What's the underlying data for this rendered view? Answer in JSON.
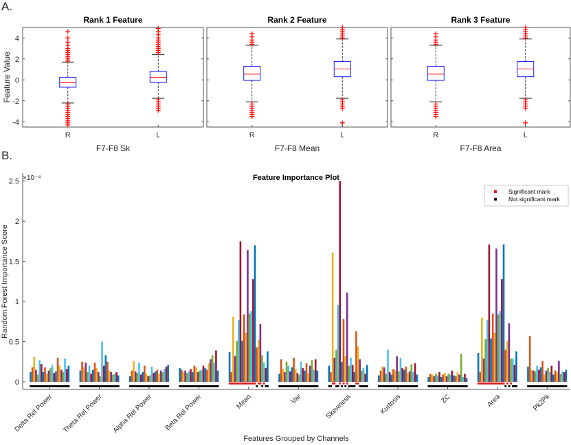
{
  "panel_labels": {
    "a": "A.",
    "b": "B."
  },
  "chart_data": [
    {
      "type": "box",
      "title": "Rank 1 Feature",
      "xlabel": "F7-F8 Sk",
      "ylabel": "Feature Value",
      "categories": [
        "R",
        "L"
      ],
      "ylim": [
        -4.5,
        5
      ],
      "yticks": [
        -4,
        -2,
        0,
        2,
        4
      ],
      "boxes": [
        {
          "category": "R",
          "q1": -0.7,
          "median": -0.25,
          "q3": 0.25,
          "whisker_low": -2.2,
          "whisker_high": 1.7,
          "outliers_low": [
            -2.3,
            -2.5,
            -2.7,
            -2.9,
            -3.1,
            -3.3,
            -3.5,
            -3.7,
            -3.9,
            -4.1,
            -4.3
          ],
          "outliers_high": [
            1.8,
            2.0,
            2.2,
            2.4,
            2.6,
            2.8,
            3.0,
            3.3,
            3.6,
            4.0,
            4.6
          ]
        },
        {
          "category": "L",
          "q1": -0.25,
          "median": 0.25,
          "q3": 0.8,
          "whisker_low": -1.75,
          "whisker_high": 2.4,
          "outliers_low": [
            -1.9,
            -2.1,
            -2.3,
            -2.5,
            -2.7,
            -2.9
          ],
          "outliers_high": [
            2.6,
            2.8,
            3.0,
            3.2,
            3.4,
            3.6,
            3.8,
            4.0,
            4.3,
            4.6,
            4.9
          ]
        }
      ]
    },
    {
      "type": "box",
      "title": "Rank 2 Feature",
      "xlabel": "F7-F8 Mean",
      "categories": [
        "R",
        "L"
      ],
      "ylim": [
        -4.5,
        5
      ],
      "boxes": [
        {
          "category": "R",
          "q1": -0.05,
          "median": 0.55,
          "q3": 1.3,
          "whisker_low": -2.1,
          "whisker_high": 3.3,
          "outliers_low": [
            -2.3,
            -2.5,
            -2.7,
            -2.9,
            -3.1,
            -3.3,
            -3.5
          ],
          "outliers_high": [
            3.4,
            3.6,
            3.8,
            4.1,
            4.4
          ]
        },
        {
          "category": "L",
          "q1": 0.3,
          "median": 1.05,
          "q3": 1.75,
          "whisker_low": -1.75,
          "whisker_high": 3.9,
          "outliers_low": [
            -1.9,
            -2.1,
            -2.3,
            -2.5,
            -2.7,
            -4.1
          ],
          "outliers_high": [
            4.0,
            4.2,
            4.4,
            4.6,
            4.8,
            5.0
          ]
        }
      ]
    },
    {
      "type": "box",
      "title": "Rank 3 Feature",
      "xlabel": "F7-F8 Area",
      "categories": [
        "R",
        "L"
      ],
      "ylim": [
        -4.5,
        5
      ],
      "boxes": [
        {
          "category": "R",
          "q1": -0.05,
          "median": 0.55,
          "q3": 1.3,
          "whisker_low": -2.1,
          "whisker_high": 3.3,
          "outliers_low": [
            -2.3,
            -2.5,
            -2.7,
            -2.9,
            -3.1,
            -3.3,
            -3.5
          ],
          "outliers_high": [
            3.4,
            3.6,
            3.8,
            4.1,
            4.4
          ]
        },
        {
          "category": "L",
          "q1": 0.3,
          "median": 1.05,
          "q3": 1.75,
          "whisker_low": -1.75,
          "whisker_high": 3.9,
          "outliers_low": [
            -1.9,
            -2.1,
            -2.3,
            -2.5,
            -2.7,
            -4.1
          ],
          "outliers_high": [
            4.0,
            4.2,
            4.4,
            4.6,
            4.8,
            5.0
          ]
        }
      ]
    },
    {
      "type": "bar",
      "title": "Feature Importance Plot",
      "xlabel": "Features Grouped by Channels",
      "ylabel": "Random Forest Importance Score",
      "y_exponent": "×10⁻⁴",
      "ylim": [
        0,
        2.6
      ],
      "yticks": [
        0,
        0.5,
        1,
        1.5,
        2,
        2.5
      ],
      "ytick_labels": [
        "0",
        "0.5",
        "1",
        "1.5",
        "2",
        "2.5"
      ],
      "legend": [
        {
          "label": "Significant mark",
          "color": "#e0191c"
        },
        {
          "label": "Not significant mark",
          "color": "#000000"
        }
      ],
      "legend_position": "top-right",
      "channel_colors": [
        "#0072bd",
        "#d95319",
        "#edb120",
        "#7e2f8e",
        "#77ac30",
        "#4dbeee",
        "#a2142f"
      ],
      "groups": [
        {
          "name": "Delta Rel Power",
          "values": [
            0.12,
            0.18,
            0.31,
            0.15,
            0.09,
            0.27,
            0.22,
            0.12,
            0.18,
            0.1,
            0.14,
            0.17,
            0.21,
            0.11,
            0.13,
            0.3,
            0.2,
            0.15,
            0.12,
            0.29,
            0.16,
            0.2
          ],
          "significant": []
        },
        {
          "name": "Theta Rel Power",
          "values": [
            0.14,
            0.25,
            0.18,
            0.24,
            0.12,
            0.2,
            0.1,
            0.15,
            0.24,
            0.17,
            0.12,
            0.07,
            0.5,
            0.2,
            0.33,
            0.25,
            0.14,
            0.12,
            0.09,
            0.1,
            0.12,
            0.08
          ],
          "significant": []
        },
        {
          "name": "Alpha Rel Power",
          "values": [
            0.07,
            0.14,
            0.26,
            0.13,
            0.11,
            0.24,
            0.09,
            0.12,
            0.2,
            0.1,
            0.07,
            0.08,
            0.19,
            0.11,
            0.13,
            0.15,
            0.1,
            0.14,
            0.12,
            0.16,
            0.19,
            0.21
          ],
          "significant": []
        },
        {
          "name": "Beta Rel Power",
          "values": [
            0.17,
            0.15,
            0.12,
            0.14,
            0.11,
            0.13,
            0.16,
            0.12,
            0.2,
            0.18,
            0.12,
            0.14,
            0.15,
            0.2,
            0.17,
            0.15,
            0.23,
            0.28,
            0.33,
            0.24,
            0.39,
            0.14
          ],
          "significant": []
        },
        {
          "name": "Mean",
          "values": [
            0.37,
            0.12,
            0.81,
            0.32,
            0.51,
            0.77,
            1.75,
            0.51,
            0.84,
            0.61,
            1.64,
            0.85,
            0.88,
            1.28,
            1.7,
            0.43,
            0.52,
            0.72,
            0.33,
            0.24,
            0.17,
            0.38
          ],
          "significant": [
            0,
            1,
            2,
            3,
            4,
            5,
            6,
            7,
            8,
            9,
            10,
            11,
            12,
            13,
            14,
            16,
            17,
            19
          ]
        },
        {
          "name": "Var",
          "values": [
            0.1,
            0.28,
            0.16,
            0.12,
            0.25,
            0.2,
            0.13,
            0.18,
            0.3,
            0.16,
            0.11,
            0.09,
            0.25,
            0.17,
            0.14,
            0.23,
            0.11,
            0.2,
            0.27,
            0.15,
            0.28,
            0.14
          ],
          "significant": []
        },
        {
          "name": "Skewness",
          "values": [
            0.2,
            0.12,
            1.61,
            0.3,
            0.4,
            0.96,
            2.5,
            0.25,
            0.78,
            0.32,
            1.11,
            0.2,
            0.3,
            0.21,
            0.12,
            0.63,
            0.44,
            0.28,
            0.14,
            0.17,
            0.1,
            0.21
          ],
          "significant": [
            2,
            3,
            6,
            8,
            10,
            15,
            16
          ]
        },
        {
          "name": "Kurtosis",
          "values": [
            0.08,
            0.14,
            0.19,
            0.18,
            0.1,
            0.4,
            0.12,
            0.09,
            0.16,
            0.14,
            0.32,
            0.13,
            0.3,
            0.17,
            0.15,
            0.19,
            0.11,
            0.13,
            0.22,
            0.12,
            0.23,
            0.09
          ],
          "significant": []
        },
        {
          "name": "ZC",
          "values": [
            0.06,
            0.1,
            0.09,
            0.07,
            0.1,
            0.08,
            0.12,
            0.06,
            0.09,
            0.11,
            0.07,
            0.1,
            0.09,
            0.14,
            0.08,
            0.07,
            0.12,
            0.09,
            0.35,
            0.06,
            0.1,
            0.05
          ],
          "significant": []
        },
        {
          "name": "Area",
          "values": [
            0.36,
            0.12,
            0.8,
            0.29,
            0.53,
            0.77,
            1.71,
            0.54,
            0.85,
            0.61,
            1.66,
            0.84,
            0.88,
            1.28,
            1.71,
            0.4,
            0.51,
            0.73,
            0.29,
            0.29,
            0.21,
            0.38
          ],
          "significant": [
            0,
            1,
            2,
            3,
            4,
            5,
            6,
            7,
            8,
            9,
            10,
            11,
            12,
            13,
            14,
            16,
            18
          ]
        },
        {
          "name": "Pk2Pk",
          "values": [
            0.19,
            0.57,
            0.15,
            0.14,
            0.13,
            0.2,
            0.15,
            0.18,
            0.26,
            0.09,
            0.14,
            0.17,
            0.12,
            0.2,
            0.09,
            0.14,
            0.12,
            0.26,
            0.1,
            0.13,
            0.12,
            0.15
          ],
          "significant": []
        }
      ]
    }
  ]
}
